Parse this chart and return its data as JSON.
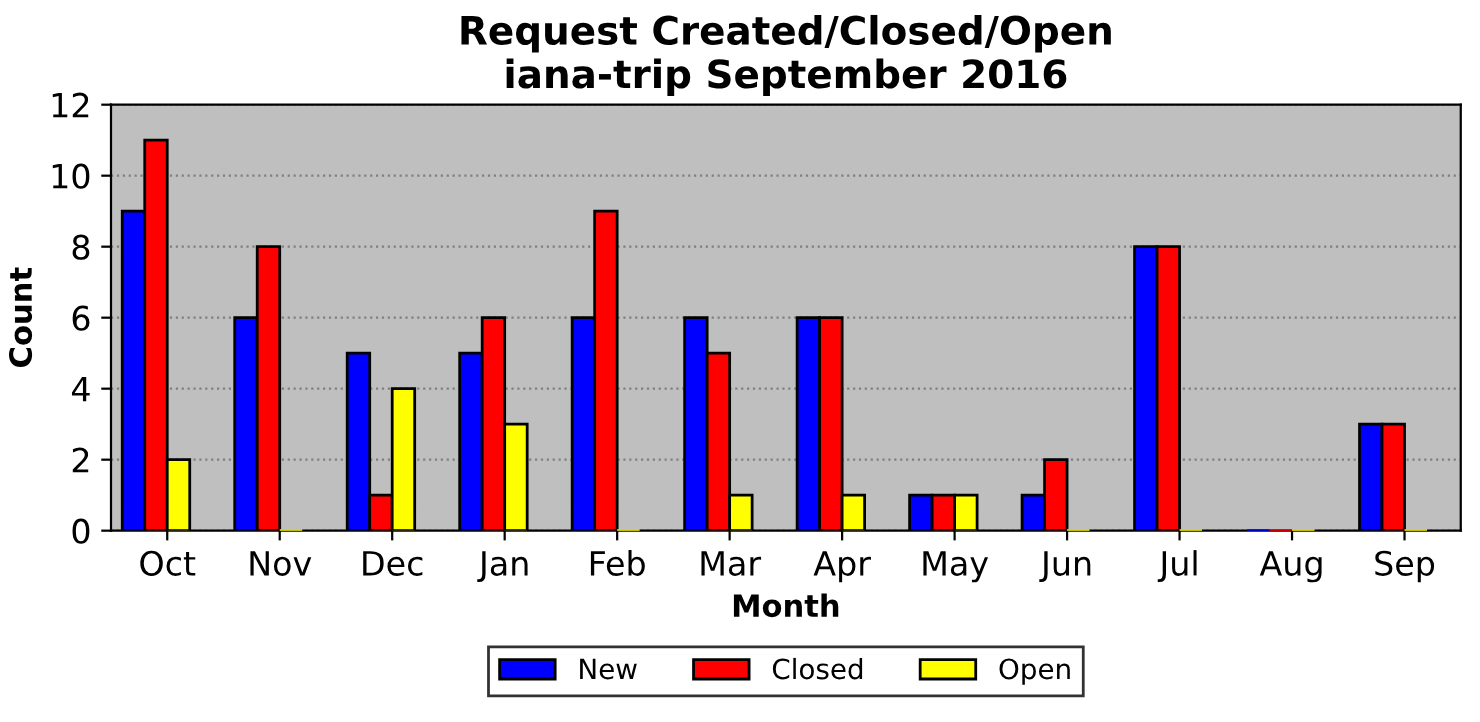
{
  "chart_data": {
    "type": "bar",
    "title": "Request Created/Closed/Open\niana-trip September 2016",
    "xlabel": "Month",
    "ylabel": "Count",
    "categories": [
      "Oct",
      "Nov",
      "Dec",
      "Jan",
      "Feb",
      "Mar",
      "Apr",
      "May",
      "Jun",
      "Jul",
      "Aug",
      "Sep"
    ],
    "series": [
      {
        "name": "New",
        "color": "#0000ff",
        "values": [
          9,
          6,
          5,
          5,
          6,
          6,
          6,
          1,
          1,
          8,
          0,
          3
        ]
      },
      {
        "name": "Closed",
        "color": "#ff0000",
        "values": [
          11,
          8,
          1,
          6,
          9,
          5,
          6,
          1,
          2,
          8,
          0,
          3
        ]
      },
      {
        "name": "Open",
        "color": "#ffff00",
        "values": [
          2,
          0,
          4,
          3,
          0,
          1,
          1,
          1,
          0,
          0,
          0,
          0
        ]
      }
    ],
    "ylim": [
      0,
      12
    ],
    "yticks": [
      0,
      2,
      4,
      6,
      8,
      10,
      12
    ],
    "grid": "y",
    "legend": "bottom"
  }
}
